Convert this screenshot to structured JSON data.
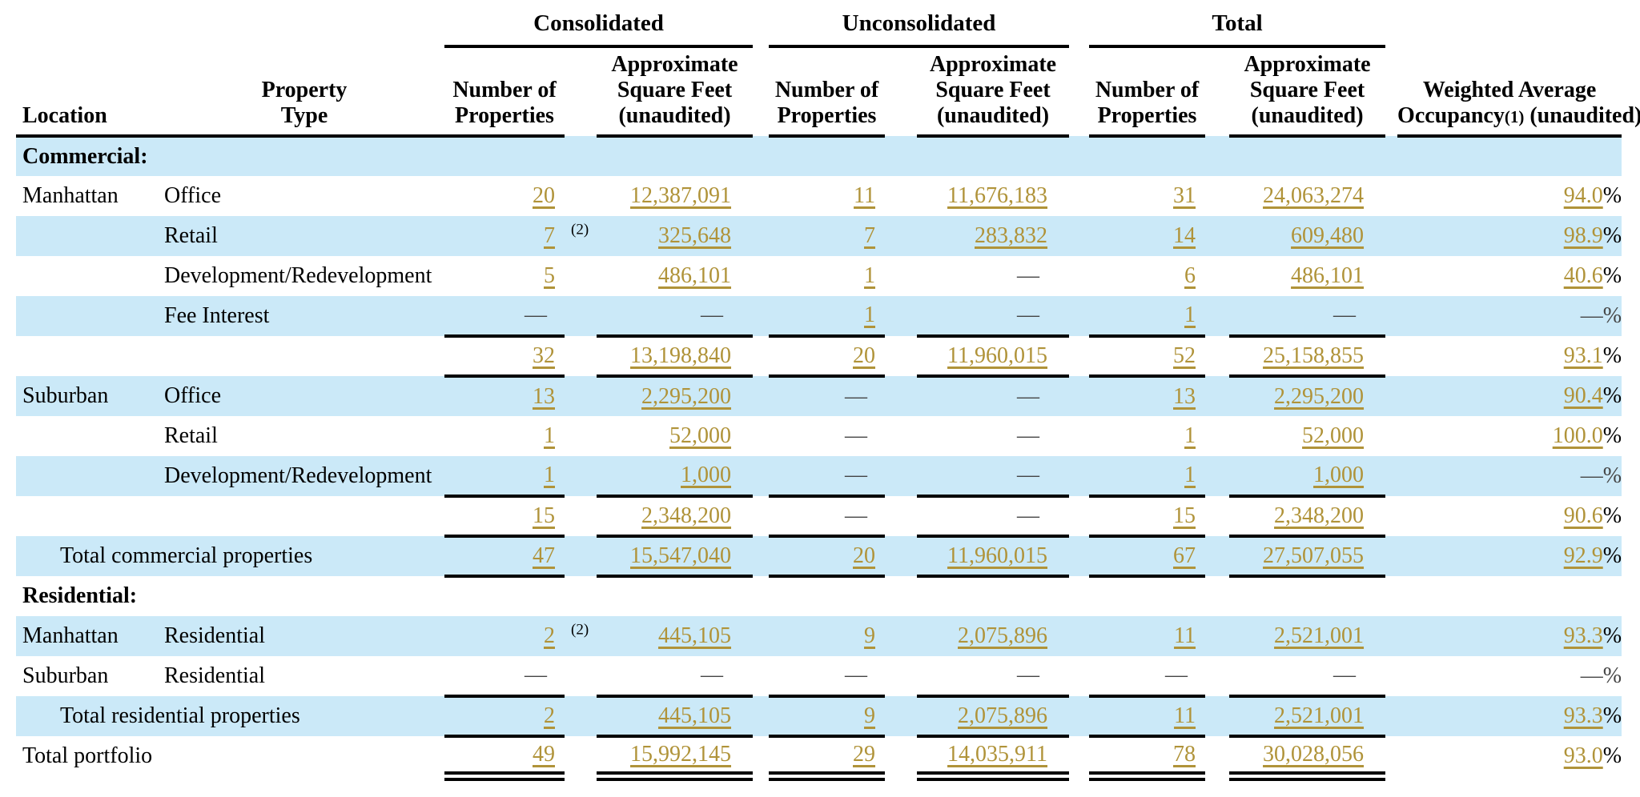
{
  "colors": {
    "row_shade": "#cbe9f8",
    "link_gold": "#b09339",
    "rule_black": "#000000",
    "dash_gray": "#444444"
  },
  "table": {
    "dash": "—",
    "percent_sign": "%",
    "group_headers": [
      "Consolidated",
      "Unconsolidated",
      "Total"
    ],
    "col_headers": {
      "location": "Location",
      "property_type": [
        "Property",
        "Type"
      ],
      "number_of_properties": [
        "Number of",
        "Properties"
      ],
      "square_feet": [
        "Approximate",
        "Square Feet",
        "(unaudited)"
      ],
      "occupancy": {
        "line1": "Weighted Average",
        "word": "Occupancy",
        "sup": "(1)",
        "rest": " (unaudited)"
      }
    },
    "rows": [
      {
        "section": "Commercial:",
        "shaded": true
      },
      {
        "loc": "Manhattan",
        "type": "Office",
        "c_num": "20",
        "c_sqft": "12,387,091",
        "u_num": "11",
        "u_sqft": "11,676,183",
        "t_num": "31",
        "t_sqft": "24,063,274",
        "occ": "94.0",
        "shaded": false
      },
      {
        "loc": "",
        "type": "Retail",
        "c_num": "7",
        "fn": "(2)",
        "c_sqft": "325,648",
        "u_num": "7",
        "u_sqft": "283,832",
        "t_num": "14",
        "t_sqft": "609,480",
        "occ": "98.9",
        "shaded": true
      },
      {
        "loc": "",
        "type": "Development/Redevelopment",
        "c_num": "5",
        "c_sqft": "486,101",
        "u_num": "1",
        "u_sqft": "—",
        "t_num": "6",
        "t_sqft": "486,101",
        "occ": "40.6",
        "shaded": false
      },
      {
        "loc": "",
        "type": "Fee Interest",
        "c_num": "—",
        "c_sqft": "—",
        "u_num": "1",
        "u_sqft": "—",
        "t_num": "1",
        "t_sqft": "—",
        "occ": "—",
        "shaded": true
      },
      {
        "loc": "",
        "type": "",
        "c_num": "32",
        "c_sqft": "13,198,840",
        "u_num": "20",
        "u_sqft": "11,960,015",
        "t_num": "52",
        "t_sqft": "25,158,855",
        "occ": "93.1",
        "shaded": false,
        "rt": true,
        "rb": "s"
      },
      {
        "loc": "Suburban",
        "type": "Office",
        "c_num": "13",
        "c_sqft": "2,295,200",
        "u_num": "—",
        "u_sqft": "—",
        "t_num": "13",
        "t_sqft": "2,295,200",
        "occ": "90.4",
        "shaded": true
      },
      {
        "loc": "",
        "type": "Retail",
        "c_num": "1",
        "c_sqft": "52,000",
        "u_num": "—",
        "u_sqft": "—",
        "t_num": "1",
        "t_sqft": "52,000",
        "occ": "100.0",
        "shaded": false
      },
      {
        "loc": "",
        "type": "Development/Redevelopment",
        "c_num": "1",
        "c_sqft": "1,000",
        "u_num": "—",
        "u_sqft": "—",
        "t_num": "1",
        "t_sqft": "1,000",
        "occ": "—",
        "shaded": true
      },
      {
        "loc": "",
        "type": "",
        "c_num": "15",
        "c_sqft": "2,348,200",
        "u_num": "—",
        "u_sqft": "—",
        "t_num": "15",
        "t_sqft": "2,348,200",
        "occ": "90.6",
        "shaded": false,
        "rt": true,
        "rb": "s"
      },
      {
        "label": "Total commercial properties",
        "indent": true,
        "c_num": "47",
        "c_sqft": "15,547,040",
        "u_num": "20",
        "u_sqft": "11,960,015",
        "t_num": "67",
        "t_sqft": "27,507,055",
        "occ": "92.9",
        "shaded": true,
        "rb": "s"
      },
      {
        "section": "Residential:",
        "shaded": false
      },
      {
        "loc": "Manhattan",
        "type": "Residential",
        "c_num": "2",
        "fn": "(2)",
        "c_sqft": "445,105",
        "u_num": "9",
        "u_sqft": "2,075,896",
        "t_num": "11",
        "t_sqft": "2,521,001",
        "occ": "93.3",
        "shaded": true
      },
      {
        "loc": "Suburban",
        "type": "Residential",
        "c_num": "—",
        "c_sqft": "—",
        "u_num": "—",
        "u_sqft": "—",
        "t_num": "—",
        "t_sqft": "—",
        "occ": "—",
        "shaded": false
      },
      {
        "label": "Total residential properties",
        "indent": true,
        "c_num": "2",
        "c_sqft": "445,105",
        "u_num": "9",
        "u_sqft": "2,075,896",
        "t_num": "11",
        "t_sqft": "2,521,001",
        "occ": "93.3",
        "shaded": true,
        "rt": true,
        "rb": "s"
      },
      {
        "label": "Total portfolio",
        "indent": false,
        "c_num": "49",
        "c_sqft": "15,992,145",
        "u_num": "29",
        "u_sqft": "14,035,911",
        "t_num": "78",
        "t_sqft": "30,028,056",
        "occ": "93.0",
        "shaded": false,
        "rb": "d"
      }
    ]
  }
}
